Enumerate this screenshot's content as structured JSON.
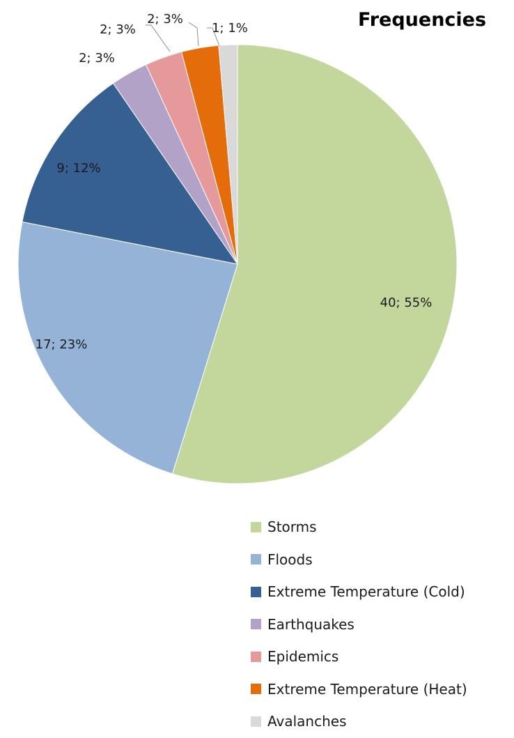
{
  "chart_data": {
    "type": "pie",
    "title": "Frequencies",
    "start_angle_deg": 0,
    "direction": "clockwise",
    "slices": [
      {
        "name": "Storms",
        "value": 40,
        "percent": 55,
        "label": "40; 55%",
        "color": "#c3d69b"
      },
      {
        "name": "Floods",
        "value": 17,
        "percent": 23,
        "label": "17; 23%",
        "color": "#95b3d7"
      },
      {
        "name": "Extreme Temperature (Cold)",
        "value": 9,
        "percent": 12,
        "label": "9; 12%",
        "color": "#366092"
      },
      {
        "name": "Earthquakes",
        "value": 2,
        "percent": 3,
        "label": "2; 3%",
        "color": "#b3a2c7"
      },
      {
        "name": "Epidemics",
        "value": 2,
        "percent": 3,
        "label": "2; 3%",
        "color": "#e6999a"
      },
      {
        "name": "Extreme Temperature (Heat)",
        "value": 2,
        "percent": 3,
        "label": "2; 3%",
        "color": "#e46c0a"
      },
      {
        "name": "Avalanches",
        "value": 1,
        "percent": 1,
        "label": "1; 1%",
        "color": "#d9d9d9"
      }
    ],
    "legend": {
      "position": "bottom"
    }
  }
}
